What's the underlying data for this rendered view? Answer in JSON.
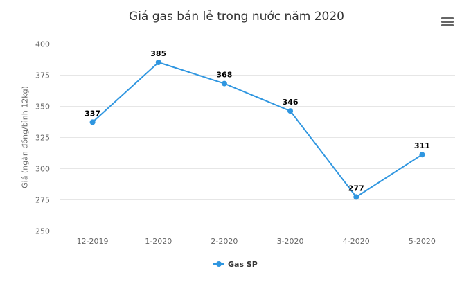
{
  "colors": {
    "series": "#2f96e0",
    "grid": "#e6e6e6",
    "axis": "#ccd6eb"
  },
  "menu": {
    "icon": "hamburger-menu-icon"
  },
  "chart_data": {
    "type": "line",
    "title": "Giá gas bán lẻ trong nước năm 2020",
    "xlabel": "",
    "ylabel": "Giá (ngàn đồng/bình 12kg)",
    "categories": [
      "12-2019",
      "1-2020",
      "2-2020",
      "3-2020",
      "4-2020",
      "5-2020"
    ],
    "series": [
      {
        "name": "Gas SP",
        "values": [
          337,
          385,
          368,
          346,
          277,
          311
        ]
      }
    ],
    "ylim": [
      250,
      400
    ],
    "yticks": [
      250,
      275,
      300,
      325,
      350,
      375,
      400
    ],
    "grid": true,
    "legend": "bottom-center",
    "data_labels": true
  }
}
